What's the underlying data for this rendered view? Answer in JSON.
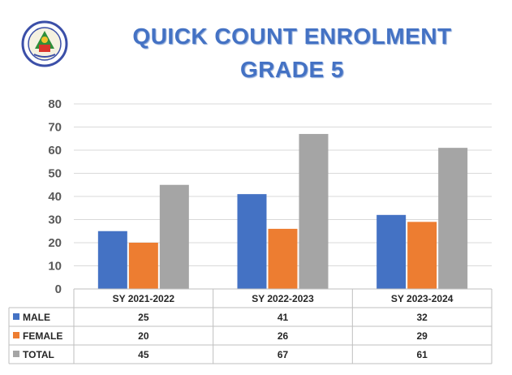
{
  "title_line1": "QUICK COUNT ENROLMENT",
  "title_line2": "GRADE 5",
  "colors": {
    "male": "#4472c4",
    "female": "#ed7d31",
    "total": "#a5a5a5",
    "title": "#4472c4"
  },
  "logo_icon": "school-seal-icon",
  "chart_data": {
    "type": "bar",
    "categories": [
      "SY 2021-2022",
      "SY 2022-2023",
      "SY 2023-2024"
    ],
    "series": [
      {
        "name": "MALE",
        "values": [
          25,
          41,
          32
        ]
      },
      {
        "name": "FEMALE",
        "values": [
          20,
          26,
          29
        ]
      },
      {
        "name": "TOTAL",
        "values": [
          45,
          67,
          61
        ]
      }
    ],
    "yticks": [
      "0",
      "10",
      "20",
      "30",
      "40",
      "50",
      "60",
      "70",
      "80"
    ],
    "ylim": [
      0,
      80
    ],
    "grid": true,
    "data_table": true
  }
}
